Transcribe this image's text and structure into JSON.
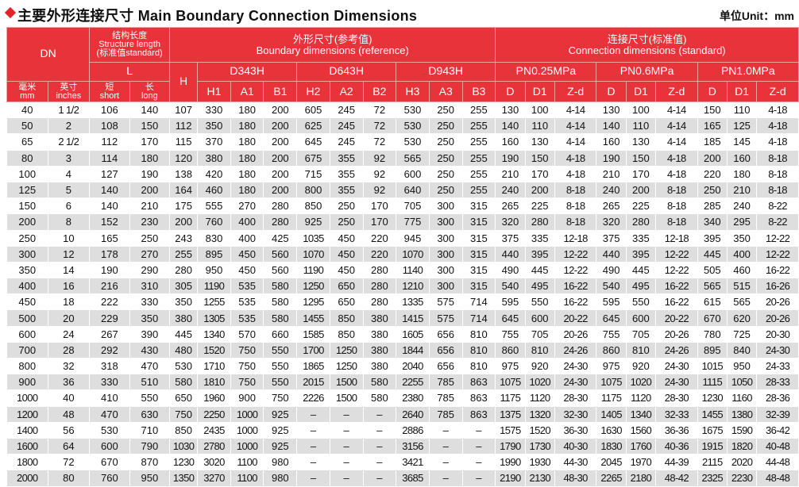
{
  "title": "主要外形连接尺寸  Main Boundary Connection Dimensions",
  "unit": "单位Unit：mm",
  "headers": {
    "dn": "DN",
    "structure_cn": "结构长度",
    "structure_en": "Structure length",
    "structure_std": "(标准值standard)",
    "boundary_cn": "外形尺寸(参考值)",
    "boundary_en": "Boundary dimensions (reference)",
    "connection_cn": "连接尺寸(标准值)",
    "connection_en": "Connection dimensions (standard)",
    "L": "L",
    "H": "H",
    "d343h": "D343H",
    "d643h": "D643H",
    "d943h": "D943H",
    "pn025": "PN0.25MPa",
    "pn06": "PN0.6MPa",
    "pn10": "PN1.0MPa",
    "mm_cn": "毫米",
    "mm_en": "mm",
    "in_cn": "英寸",
    "in_en": "inches",
    "short_cn": "短",
    "short_en": "short",
    "long_cn": "长",
    "long_en": "long",
    "sub": [
      "H1",
      "A1",
      "B1",
      "H2",
      "A2",
      "B2",
      "H3",
      "A3",
      "B3",
      "D",
      "D1",
      "Z-d",
      "D",
      "D1",
      "Z-d",
      "D",
      "D1",
      "Z-d"
    ]
  },
  "rows": [
    [
      "40",
      "1 1/2",
      "106",
      "140",
      "107",
      "330",
      "180",
      "200",
      "605",
      "245",
      "72",
      "530",
      "250",
      "255",
      "130",
      "100",
      "4-14",
      "130",
      "100",
      "4-14",
      "150",
      "110",
      "4-18"
    ],
    [
      "50",
      "2",
      "108",
      "150",
      "112",
      "350",
      "180",
      "200",
      "625",
      "245",
      "72",
      "530",
      "250",
      "255",
      "140",
      "110",
      "4-14",
      "140",
      "110",
      "4-14",
      "165",
      "125",
      "4-18"
    ],
    [
      "65",
      "2 1/2",
      "112",
      "170",
      "115",
      "370",
      "180",
      "200",
      "645",
      "245",
      "72",
      "530",
      "250",
      "255",
      "160",
      "130",
      "4-14",
      "160",
      "130",
      "4-14",
      "185",
      "145",
      "4-18"
    ],
    [
      "80",
      "3",
      "114",
      "180",
      "120",
      "380",
      "180",
      "200",
      "675",
      "355",
      "92",
      "565",
      "250",
      "255",
      "190",
      "150",
      "4-18",
      "190",
      "150",
      "4-18",
      "200",
      "160",
      "8-18"
    ],
    [
      "100",
      "4",
      "127",
      "190",
      "138",
      "420",
      "180",
      "200",
      "715",
      "355",
      "92",
      "600",
      "250",
      "255",
      "210",
      "170",
      "4-18",
      "210",
      "170",
      "4-18",
      "220",
      "180",
      "8-18"
    ],
    [
      "125",
      "5",
      "140",
      "200",
      "164",
      "460",
      "180",
      "200",
      "800",
      "355",
      "92",
      "640",
      "250",
      "255",
      "240",
      "200",
      "8-18",
      "240",
      "200",
      "8-18",
      "250",
      "210",
      "8-18"
    ],
    [
      "150",
      "6",
      "140",
      "210",
      "175",
      "555",
      "270",
      "280",
      "850",
      "250",
      "170",
      "705",
      "300",
      "315",
      "265",
      "225",
      "8-18",
      "265",
      "225",
      "8-18",
      "285",
      "240",
      "8-22"
    ],
    [
      "200",
      "8",
      "152",
      "230",
      "200",
      "760",
      "400",
      "280",
      "925",
      "250",
      "170",
      "775",
      "300",
      "315",
      "320",
      "280",
      "8-18",
      "320",
      "280",
      "8-18",
      "340",
      "295",
      "8-22"
    ],
    [
      "250",
      "10",
      "165",
      "250",
      "243",
      "830",
      "400",
      "425",
      "1035",
      "450",
      "220",
      "945",
      "300",
      "315",
      "375",
      "335",
      "12-18",
      "375",
      "335",
      "12-18",
      "395",
      "350",
      "12-22"
    ],
    [
      "300",
      "12",
      "178",
      "270",
      "255",
      "895",
      "450",
      "560",
      "1070",
      "450",
      "220",
      "1070",
      "300",
      "315",
      "440",
      "395",
      "12-22",
      "440",
      "395",
      "12-22",
      "445",
      "400",
      "12-22"
    ],
    [
      "350",
      "14",
      "190",
      "290",
      "280",
      "950",
      "450",
      "560",
      "1190",
      "450",
      "280",
      "1140",
      "300",
      "315",
      "490",
      "445",
      "12-22",
      "490",
      "445",
      "12-22",
      "505",
      "460",
      "16-22"
    ],
    [
      "400",
      "16",
      "216",
      "310",
      "305",
      "1190",
      "535",
      "580",
      "1250",
      "650",
      "280",
      "1210",
      "300",
      "315",
      "540",
      "495",
      "16-22",
      "540",
      "495",
      "16-22",
      "565",
      "515",
      "16-26"
    ],
    [
      "450",
      "18",
      "222",
      "330",
      "350",
      "1255",
      "535",
      "580",
      "1295",
      "650",
      "280",
      "1335",
      "575",
      "714",
      "595",
      "550",
      "16-22",
      "595",
      "550",
      "16-22",
      "615",
      "565",
      "20-26"
    ],
    [
      "500",
      "20",
      "229",
      "350",
      "380",
      "1305",
      "535",
      "580",
      "1455",
      "850",
      "380",
      "1415",
      "575",
      "714",
      "645",
      "600",
      "20-22",
      "645",
      "600",
      "20-22",
      "670",
      "620",
      "20-26"
    ],
    [
      "600",
      "24",
      "267",
      "390",
      "445",
      "1340",
      "570",
      "660",
      "1585",
      "850",
      "380",
      "1605",
      "656",
      "810",
      "755",
      "705",
      "20-26",
      "755",
      "705",
      "20-26",
      "780",
      "725",
      "20-30"
    ],
    [
      "700",
      "28",
      "292",
      "430",
      "480",
      "1520",
      "750",
      "550",
      "1700",
      "1250",
      "380",
      "1844",
      "656",
      "810",
      "860",
      "810",
      "24-26",
      "860",
      "810",
      "24-26",
      "895",
      "840",
      "24-30"
    ],
    [
      "800",
      "32",
      "318",
      "470",
      "530",
      "1710",
      "750",
      "550",
      "1865",
      "1250",
      "380",
      "2040",
      "656",
      "810",
      "975",
      "920",
      "24-30",
      "975",
      "920",
      "24-30",
      "1015",
      "950",
      "24-33"
    ],
    [
      "900",
      "36",
      "330",
      "510",
      "580",
      "1810",
      "750",
      "550",
      "2015",
      "1500",
      "580",
      "2255",
      "785",
      "863",
      "1075",
      "1020",
      "24-30",
      "1075",
      "1020",
      "24-30",
      "1115",
      "1050",
      "28-33"
    ],
    [
      "1000",
      "40",
      "410",
      "550",
      "650",
      "1960",
      "900",
      "750",
      "2226",
      "1500",
      "580",
      "2380",
      "785",
      "863",
      "1175",
      "1120",
      "28-30",
      "1175",
      "1120",
      "28-30",
      "1230",
      "1160",
      "28-36"
    ],
    [
      "1200",
      "48",
      "470",
      "630",
      "750",
      "2250",
      "1000",
      "925",
      "–",
      "–",
      "–",
      "2640",
      "785",
      "863",
      "1375",
      "1320",
      "32-30",
      "1405",
      "1340",
      "32-33",
      "1455",
      "1380",
      "32-39"
    ],
    [
      "1400",
      "56",
      "530",
      "710",
      "850",
      "2435",
      "1000",
      "925",
      "–",
      "–",
      "–",
      "2886",
      "–",
      "–",
      "1575",
      "1520",
      "36-30",
      "1630",
      "1560",
      "36-36",
      "1675",
      "1590",
      "36-42"
    ],
    [
      "1600",
      "64",
      "600",
      "790",
      "1030",
      "2780",
      "1000",
      "925",
      "–",
      "–",
      "–",
      "3156",
      "–",
      "–",
      "1790",
      "1730",
      "40-30",
      "1830",
      "1760",
      "40-36",
      "1915",
      "1820",
      "40-48"
    ],
    [
      "1800",
      "72",
      "670",
      "870",
      "1230",
      "3020",
      "1100",
      "980",
      "–",
      "–",
      "–",
      "3421",
      "–",
      "–",
      "1990",
      "1930",
      "44-30",
      "2045",
      "1970",
      "44-39",
      "2115",
      "2020",
      "44-48"
    ],
    [
      "2000",
      "80",
      "760",
      "950",
      "1350",
      "3270",
      "1100",
      "980",
      "–",
      "–",
      "–",
      "3685",
      "–",
      "–",
      "2190",
      "2130",
      "48-30",
      "2265",
      "2180",
      "48-42",
      "2325",
      "2230",
      "48-48"
    ]
  ]
}
